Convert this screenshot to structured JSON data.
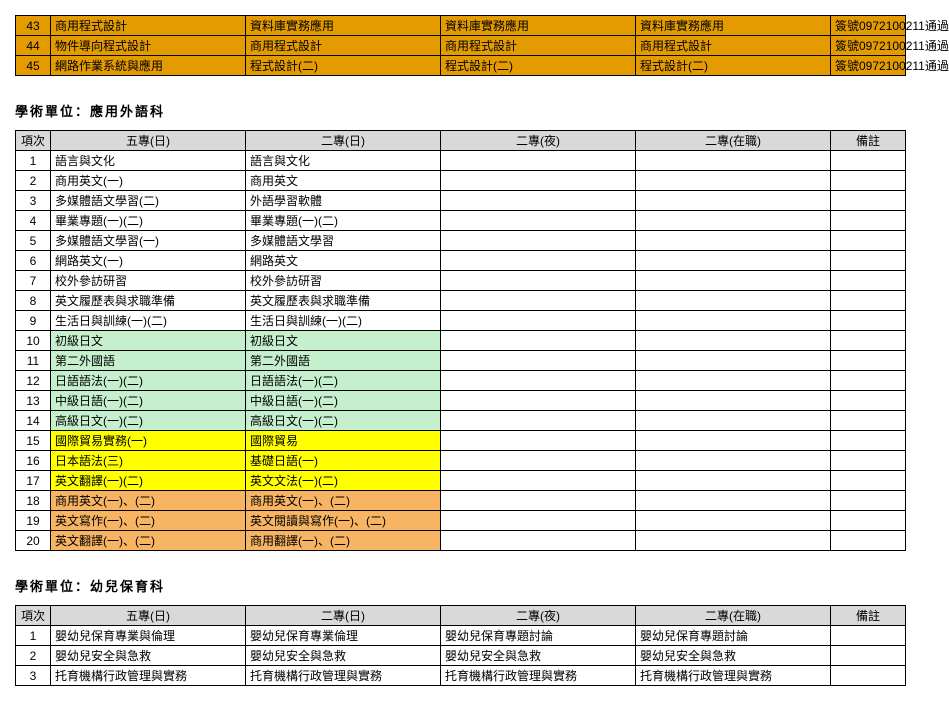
{
  "colors": {
    "orange": "#e49b00",
    "lightgreen": "#c6efce",
    "yellow": "#ffff00",
    "orange2": "#f7b463",
    "header_bg": "#d9d9d9",
    "border": "#000000",
    "bg": "#ffffff",
    "text": "#000000"
  },
  "top_table": {
    "rows": [
      {
        "num": "43",
        "a": "商用程式設計",
        "b": "資料庫實務應用",
        "c": "資料庫實務應用",
        "d": "資料庫實務應用",
        "note": "簽號0972100211通過",
        "cls": "orange"
      },
      {
        "num": "44",
        "a": "物件導向程式設計",
        "b": "商用程式設計",
        "c": "商用程式設計",
        "d": "商用程式設計",
        "note": "簽號0972100211通過",
        "cls": "orange"
      },
      {
        "num": "45",
        "a": "網路作業系統與應用",
        "b": "程式設計(二)",
        "c": "程式設計(二)",
        "d": "程式設計(二)",
        "note": "簽號0972100211通過",
        "cls": "orange"
      }
    ]
  },
  "sections": [
    {
      "title": "學術單位：應用外語科",
      "headers": [
        "項次",
        "五專(日)",
        "二專(日)",
        "二專(夜)",
        "二專(在職)",
        "備註"
      ],
      "rows": [
        {
          "num": "1",
          "a": "語言與文化",
          "b": "語言與文化",
          "c": "",
          "d": "",
          "note": "",
          "cls": ""
        },
        {
          "num": "2",
          "a": "商用英文(一)",
          "b": "商用英文",
          "c": "",
          "d": "",
          "note": "",
          "cls": ""
        },
        {
          "num": "3",
          "a": "多媒體語文學習(二)",
          "b": "外語學習軟體",
          "c": "",
          "d": "",
          "note": "",
          "cls": ""
        },
        {
          "num": "4",
          "a": "畢業專題(一)(二)",
          "b": "畢業專題(一)(二)",
          "c": "",
          "d": "",
          "note": "",
          "cls": ""
        },
        {
          "num": "5",
          "a": "多媒體語文學習(一)",
          "b": "多媒體語文學習",
          "c": "",
          "d": "",
          "note": "",
          "cls": ""
        },
        {
          "num": "6",
          "a": "網路英文(一)",
          "b": "網路英文",
          "c": "",
          "d": "",
          "note": "",
          "cls": ""
        },
        {
          "num": "7",
          "a": "校外參訪研習",
          "b": "校外參訪研習",
          "c": "",
          "d": "",
          "note": "",
          "cls": ""
        },
        {
          "num": "8",
          "a": "英文履歷表與求職準備",
          "b": "英文履歷表與求職準備",
          "c": "",
          "d": "",
          "note": "",
          "cls": ""
        },
        {
          "num": "9",
          "a": "生活日與訓練(一)(二)",
          "b": "生活日與訓練(一)(二)",
          "c": "",
          "d": "",
          "note": "",
          "cls": ""
        },
        {
          "num": "10",
          "a": "初級日文",
          "b": "初級日文",
          "c": "",
          "d": "",
          "note": "",
          "cls": "lightgreen"
        },
        {
          "num": "11",
          "a": "第二外國語",
          "b": "第二外國語",
          "c": "",
          "d": "",
          "note": "",
          "cls": "lightgreen"
        },
        {
          "num": "12",
          "a": "日語語法(一)(二)",
          "b": "日語語法(一)(二)",
          "c": "",
          "d": "",
          "note": "",
          "cls": "lightgreen"
        },
        {
          "num": "13",
          "a": "中級日語(一)(二)",
          "b": "中級日語(一)(二)",
          "c": "",
          "d": "",
          "note": "",
          "cls": "lightgreen"
        },
        {
          "num": "14",
          "a": "高級日文(一)(二)",
          "b": "高級日文(一)(二)",
          "c": "",
          "d": "",
          "note": "",
          "cls": "lightgreen"
        },
        {
          "num": "15",
          "a": "國際貿易實務(一)",
          "b": "國際貿易",
          "c": "",
          "d": "",
          "note": "",
          "cls": "yellow"
        },
        {
          "num": "16",
          "a": "日本語法(三)",
          "b": "基礎日語(一)",
          "c": "",
          "d": "",
          "note": "",
          "cls": "yellow"
        },
        {
          "num": "17",
          "a": "英文翻譯(一)(二)",
          "b": "英文文法(一)(二)",
          "c": "",
          "d": "",
          "note": "",
          "cls": "yellow"
        },
        {
          "num": "18",
          "a": "商用英文(一)、(二)",
          "b": "商用英文(一)、(二)",
          "c": "",
          "d": "",
          "note": "",
          "cls": "orange2"
        },
        {
          "num": "19",
          "a": "英文寫作(一)、(二)",
          "b": "英文閱讀與寫作(一)、(二)",
          "c": "",
          "d": "",
          "note": "",
          "cls": "orange2"
        },
        {
          "num": "20",
          "a": "英文翻譯(一)、(二)",
          "b": "商用翻譯(一)、(二)",
          "c": "",
          "d": "",
          "note": "",
          "cls": "orange2"
        }
      ]
    },
    {
      "title": "學術單位：幼兒保育科",
      "headers": [
        "項次",
        "五專(日)",
        "二專(日)",
        "二專(夜)",
        "二專(在職)",
        "備註"
      ],
      "rows": [
        {
          "num": "1",
          "a": "嬰幼兒保育專業與倫理",
          "b": "嬰幼兒保育專業倫理",
          "c": "嬰幼兒保育專題討論",
          "d": "嬰幼兒保育專題討論",
          "note": "",
          "cls": ""
        },
        {
          "num": "2",
          "a": "嬰幼兒安全與急救",
          "b": "嬰幼兒安全與急救",
          "c": "嬰幼兒安全與急救",
          "d": "嬰幼兒安全與急救",
          "note": "",
          "cls": ""
        },
        {
          "num": "3",
          "a": "托育機構行政管理與實務",
          "b": "托育機構行政管理與實務",
          "c": "托育機構行政管理與實務",
          "d": "托育機構行政管理與實務",
          "note": "",
          "cls": ""
        }
      ]
    }
  ]
}
